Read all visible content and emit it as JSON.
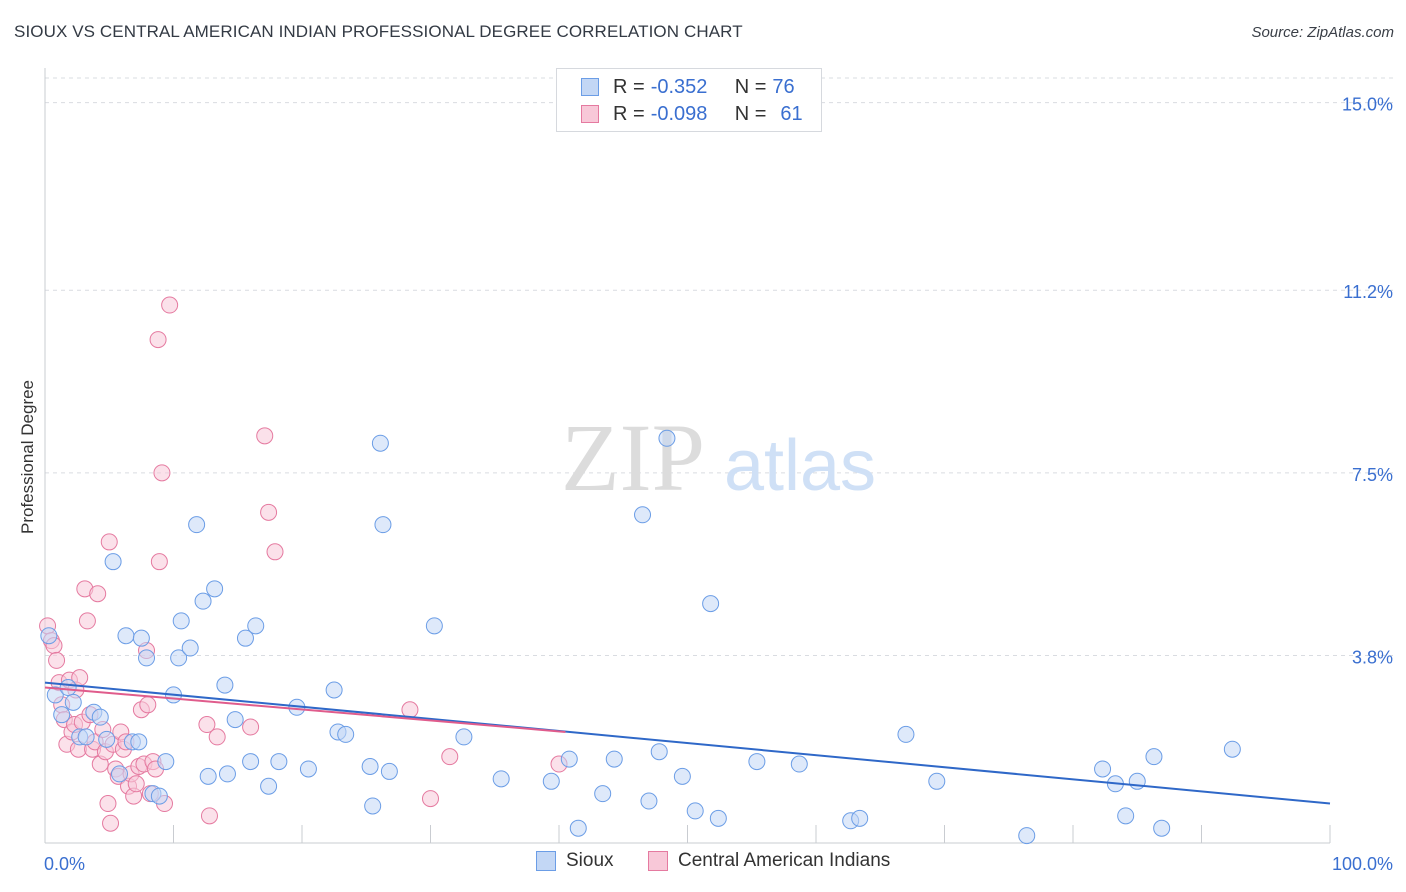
{
  "header": {
    "title": "SIOUX VS CENTRAL AMERICAN INDIAN PROFESSIONAL DEGREE CORRELATION CHART",
    "source": "Source: ZipAtlas.com"
  },
  "watermark": {
    "zip": "ZIP",
    "atlas": "atlas"
  },
  "legend": {
    "rows": [
      {
        "r_label": "R =",
        "r_value": "-0.352",
        "n_label": "N =",
        "n_value": "76",
        "color": "#6b9de6",
        "fill": "#c3d7f5"
      },
      {
        "r_label": "R =",
        "r_value": "-0.098",
        "n_label": "N =",
        "n_value": "61",
        "color": "#e57aa0",
        "fill": "#f8c8d8"
      }
    ]
  },
  "bottom_legend": {
    "sioux": "Sioux",
    "central": "Central American Indians"
  },
  "colors": {
    "sioux_stroke": "#6b9de6",
    "sioux_fill": "#c3d7f5",
    "sioux_line": "#2f68c8",
    "central_stroke": "#e57aa0",
    "central_fill": "#f8c8d8",
    "central_line": "#e05c8c",
    "axis_label": "#3a6fd0",
    "grid": "#d9dce1"
  },
  "chart_data": {
    "type": "scatter",
    "title": "SIOUX VS CENTRAL AMERICAN INDIAN PROFESSIONAL DEGREE CORRELATION CHART",
    "xlabel": "",
    "ylabel": "Professional Degree",
    "xlim": [
      0,
      100
    ],
    "ylim": [
      0,
      15.5
    ],
    "x_tick_labels": {
      "min": "0.0%",
      "max": "100.0%"
    },
    "y_ticks": [
      {
        "value": 3.8,
        "label": "3.8%"
      },
      {
        "value": 7.5,
        "label": "7.5%"
      },
      {
        "value": 11.2,
        "label": "11.2%"
      },
      {
        "value": 15.0,
        "label": "15.0%"
      }
    ],
    "grid": true,
    "legend_position": "top-center",
    "series": [
      {
        "name": "Sioux",
        "r": -0.352,
        "n": 76,
        "trend": {
          "x": [
            0,
            100
          ],
          "y": [
            3.25,
            0.8
          ]
        },
        "points": [
          [
            0.3,
            4.2
          ],
          [
            0.8,
            3.0
          ],
          [
            1.3,
            2.6
          ],
          [
            1.8,
            3.15
          ],
          [
            2.2,
            2.85
          ],
          [
            2.7,
            2.15
          ],
          [
            3.2,
            2.15
          ],
          [
            3.8,
            2.65
          ],
          [
            4.3,
            2.55
          ],
          [
            4.8,
            2.1
          ],
          [
            5.3,
            5.7
          ],
          [
            5.8,
            1.4
          ],
          [
            6.3,
            4.2
          ],
          [
            6.8,
            2.05
          ],
          [
            7.3,
            2.05
          ],
          [
            7.5,
            4.15
          ],
          [
            7.9,
            3.75
          ],
          [
            8.4,
            1.0
          ],
          [
            8.9,
            0.95
          ],
          [
            9.4,
            1.65
          ],
          [
            10.0,
            3.0
          ],
          [
            10.4,
            3.75
          ],
          [
            10.6,
            4.5
          ],
          [
            11.3,
            3.95
          ],
          [
            11.8,
            6.45
          ],
          [
            12.3,
            4.9
          ],
          [
            12.7,
            1.35
          ],
          [
            13.2,
            5.15
          ],
          [
            14.0,
            3.2
          ],
          [
            14.2,
            1.4
          ],
          [
            14.8,
            2.5
          ],
          [
            15.6,
            4.15
          ],
          [
            16.0,
            1.65
          ],
          [
            16.4,
            4.4
          ],
          [
            17.4,
            1.15
          ],
          [
            18.2,
            1.65
          ],
          [
            19.6,
            2.75
          ],
          [
            20.5,
            1.5
          ],
          [
            22.5,
            3.1
          ],
          [
            22.8,
            2.25
          ],
          [
            23.4,
            2.2
          ],
          [
            25.3,
            1.55
          ],
          [
            25.5,
            0.75
          ],
          [
            26.1,
            8.1
          ],
          [
            26.3,
            6.45
          ],
          [
            26.8,
            1.45
          ],
          [
            30.3,
            4.4
          ],
          [
            32.6,
            2.15
          ],
          [
            35.5,
            1.3
          ],
          [
            39.4,
            1.25
          ],
          [
            40.8,
            1.7
          ],
          [
            41.5,
            0.3
          ],
          [
            43.4,
            1.0
          ],
          [
            44.3,
            1.7
          ],
          [
            46.5,
            6.65
          ],
          [
            47.0,
            0.85
          ],
          [
            47.8,
            1.85
          ],
          [
            48.4,
            8.2
          ],
          [
            49.6,
            1.35
          ],
          [
            50.6,
            0.65
          ],
          [
            51.8,
            4.85
          ],
          [
            52.4,
            0.5
          ],
          [
            55.4,
            1.65
          ],
          [
            58.7,
            1.6
          ],
          [
            62.7,
            0.45
          ],
          [
            63.4,
            0.5
          ],
          [
            67.0,
            2.2
          ],
          [
            69.4,
            1.25
          ],
          [
            76.4,
            0.15
          ],
          [
            82.3,
            1.5
          ],
          [
            83.3,
            1.2
          ],
          [
            84.1,
            0.55
          ],
          [
            85.0,
            1.25
          ],
          [
            86.3,
            1.75
          ],
          [
            86.9,
            0.3
          ],
          [
            92.4,
            1.9
          ]
        ]
      },
      {
        "name": "Central American Indians",
        "r": -0.098,
        "n": 61,
        "trend": {
          "x": [
            0,
            40.5
          ],
          "y": [
            3.15,
            2.25
          ]
        },
        "points": [
          [
            0.2,
            4.4
          ],
          [
            0.5,
            4.1
          ],
          [
            0.7,
            4.0
          ],
          [
            0.9,
            3.7
          ],
          [
            1.1,
            3.25
          ],
          [
            1.3,
            2.8
          ],
          [
            1.5,
            2.5
          ],
          [
            1.7,
            2.0
          ],
          [
            1.9,
            3.3
          ],
          [
            2.1,
            2.25
          ],
          [
            2.3,
            2.4
          ],
          [
            2.4,
            3.1
          ],
          [
            2.6,
            1.9
          ],
          [
            2.7,
            3.35
          ],
          [
            2.9,
            2.45
          ],
          [
            3.1,
            5.15
          ],
          [
            3.3,
            4.5
          ],
          [
            3.5,
            2.6
          ],
          [
            3.7,
            1.9
          ],
          [
            3.9,
            2.05
          ],
          [
            4.1,
            5.05
          ],
          [
            4.3,
            1.6
          ],
          [
            4.5,
            2.3
          ],
          [
            4.7,
            1.85
          ],
          [
            4.9,
            0.8
          ],
          [
            5.0,
            6.1
          ],
          [
            5.1,
            0.4
          ],
          [
            5.3,
            2.0
          ],
          [
            5.5,
            1.5
          ],
          [
            5.7,
            1.35
          ],
          [
            5.9,
            2.25
          ],
          [
            6.1,
            1.9
          ],
          [
            6.3,
            2.05
          ],
          [
            6.5,
            1.15
          ],
          [
            6.7,
            1.4
          ],
          [
            6.9,
            0.95
          ],
          [
            7.1,
            1.2
          ],
          [
            7.3,
            1.55
          ],
          [
            7.5,
            2.7
          ],
          [
            7.7,
            1.6
          ],
          [
            7.9,
            3.9
          ],
          [
            8.0,
            2.8
          ],
          [
            8.2,
            1.0
          ],
          [
            8.4,
            1.65
          ],
          [
            8.6,
            1.5
          ],
          [
            8.8,
            10.2
          ],
          [
            8.9,
            5.7
          ],
          [
            9.1,
            7.5
          ],
          [
            9.3,
            0.8
          ],
          [
            9.7,
            10.9
          ],
          [
            12.6,
            2.4
          ],
          [
            12.8,
            0.55
          ],
          [
            13.4,
            2.15
          ],
          [
            16.0,
            2.35
          ],
          [
            17.1,
            8.25
          ],
          [
            17.4,
            6.7
          ],
          [
            17.9,
            5.9
          ],
          [
            28.4,
            2.7
          ],
          [
            30.0,
            0.9
          ],
          [
            31.5,
            1.75
          ],
          [
            40.0,
            1.6
          ]
        ]
      }
    ]
  }
}
